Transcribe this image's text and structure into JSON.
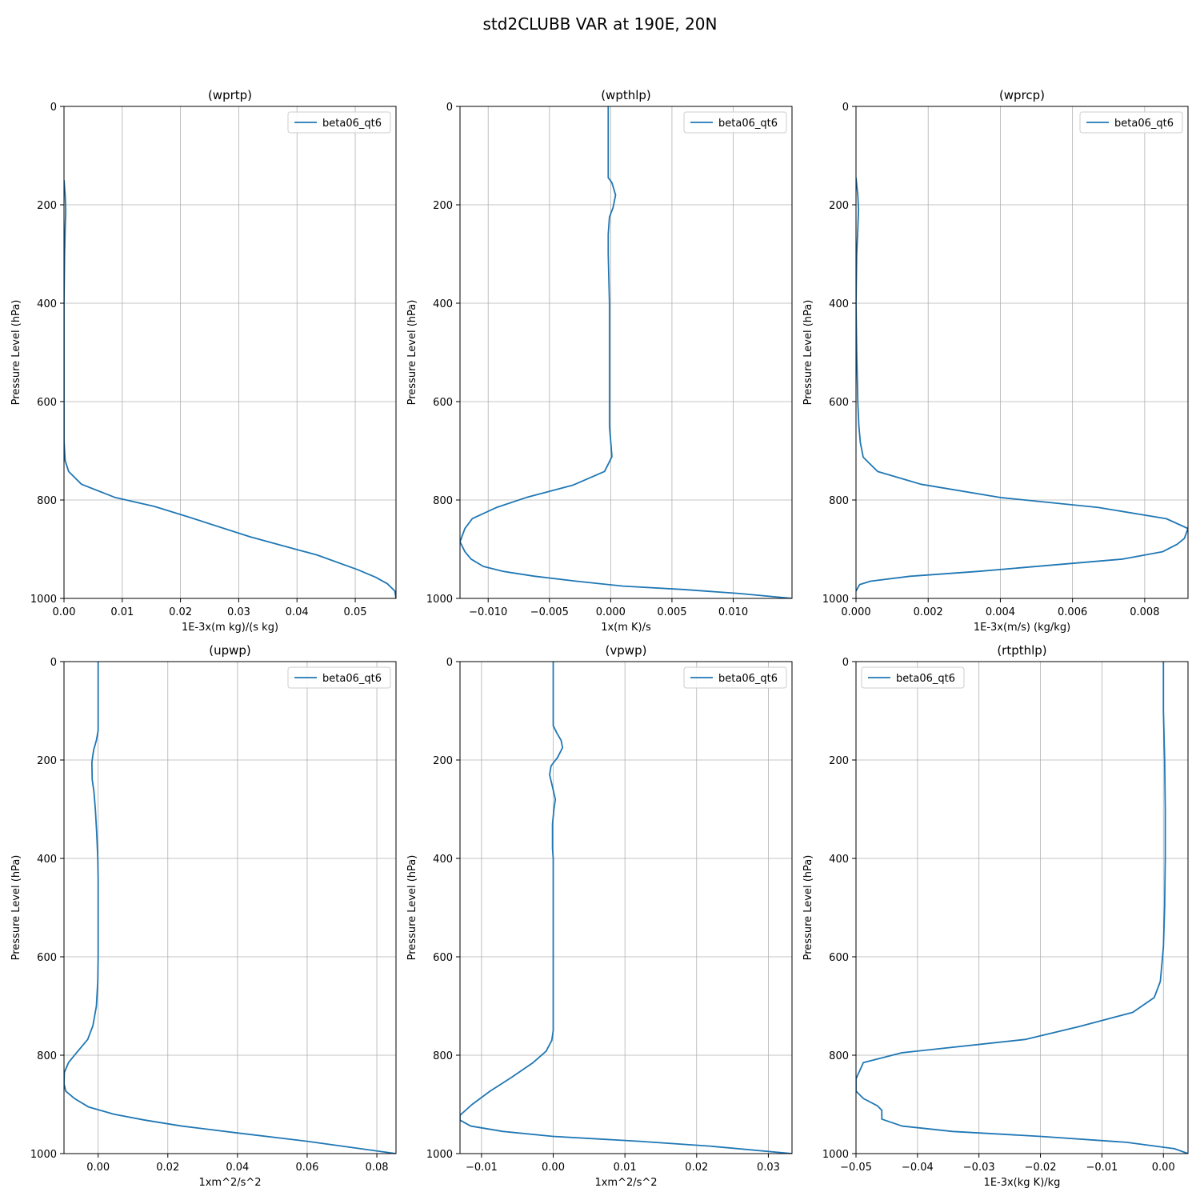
{
  "figure_title": "std2CLUBB VAR at 190E, 20N",
  "chart_data": [
    {
      "type": "line",
      "title": "(wprtp)",
      "xlabel": "1E-3x(m kg)/(s kg)",
      "ylabel": "Pressure Level (hPa)",
      "xlim": [
        0,
        0.057
      ],
      "ylim": [
        1000,
        0
      ],
      "y_inverted": true,
      "grid": true,
      "legend_position": "upper right",
      "xticks": [
        0.0,
        0.01,
        0.02,
        0.03,
        0.04,
        0.05
      ],
      "xtick_labels": [
        "0.00",
        "0.01",
        "0.02",
        "0.03",
        "0.04",
        "0.05"
      ],
      "yticks": [
        0,
        200,
        400,
        600,
        800,
        1000
      ],
      "series": [
        {
          "name": "beta06_qt6",
          "color": "#1f77b4",
          "points": [
            [
              0.0,
              150
            ],
            [
              0.0002,
              180
            ],
            [
              0.0003,
              210
            ],
            [
              0.0002,
              250
            ],
            [
              0.0001,
              300
            ],
            [
              0.0,
              400
            ],
            [
              0.0,
              500
            ],
            [
              0.0,
              600
            ],
            [
              0.0,
              680
            ],
            [
              0.0002,
              720
            ],
            [
              0.0008,
              742
            ],
            [
              0.003,
              768
            ],
            [
              0.0088,
              795
            ],
            [
              0.0155,
              813
            ],
            [
              0.0215,
              835
            ],
            [
              0.032,
              875
            ],
            [
              0.0435,
              912
            ],
            [
              0.0505,
              942
            ],
            [
              0.0535,
              957
            ],
            [
              0.0555,
              970
            ],
            [
              0.0568,
              985
            ],
            [
              0.057,
              1000
            ]
          ]
        }
      ]
    },
    {
      "type": "line",
      "title": "(wpthlp)",
      "xlabel": "1x(m K)/s",
      "ylabel": "Pressure Level (hPa)",
      "xlim": [
        -0.0123,
        0.0148
      ],
      "ylim": [
        1000,
        0
      ],
      "y_inverted": true,
      "grid": true,
      "legend_position": "upper right",
      "xticks": [
        -0.01,
        -0.005,
        0.0,
        0.005,
        0.01
      ],
      "xtick_labels": [
        "−0.010",
        "−0.005",
        "0.000",
        "0.005",
        "0.010"
      ],
      "yticks": [
        0,
        200,
        400,
        600,
        800,
        1000
      ],
      "series": [
        {
          "name": "beta06_qt6",
          "color": "#1f77b4",
          "points": [
            [
              -0.0002,
              0
            ],
            [
              -0.0002,
              50
            ],
            [
              -0.0002,
              100
            ],
            [
              -0.0002,
              145
            ],
            [
              0.0001,
              155
            ],
            [
              0.0004,
              180
            ],
            [
              0.0002,
              205
            ],
            [
              -0.0001,
              225
            ],
            [
              -0.0002,
              260
            ],
            [
              -0.0002,
              300
            ],
            [
              -0.0001,
              400
            ],
            [
              -0.0001,
              500
            ],
            [
              -0.0001,
              600
            ],
            [
              -0.0001,
              650
            ],
            [
              0.0,
              680
            ],
            [
              0.0001,
              712
            ],
            [
              -0.0005,
              742
            ],
            [
              -0.0031,
              770
            ],
            [
              -0.0069,
              795
            ],
            [
              -0.0093,
              815
            ],
            [
              -0.0113,
              838
            ],
            [
              -0.0119,
              858
            ],
            [
              -0.0123,
              885
            ],
            [
              -0.0119,
              905
            ],
            [
              -0.0114,
              920
            ],
            [
              -0.0104,
              935
            ],
            [
              -0.0088,
              945
            ],
            [
              -0.0062,
              955
            ],
            [
              -0.0028,
              965
            ],
            [
              0.001,
              975
            ],
            [
              0.006,
              982
            ],
            [
              0.0105,
              990
            ],
            [
              0.0148,
              1000
            ]
          ]
        }
      ]
    },
    {
      "type": "line",
      "title": "(wprcp)",
      "xlabel": "1E-3x(m/s) (kg/kg)",
      "ylabel": "Pressure Level (hPa)",
      "xlim": [
        0,
        0.0092
      ],
      "ylim": [
        1000,
        0
      ],
      "y_inverted": true,
      "grid": true,
      "legend_position": "upper right",
      "xticks": [
        0.0,
        0.002,
        0.004,
        0.006,
        0.008
      ],
      "xtick_labels": [
        "0.000",
        "0.002",
        "0.004",
        "0.006",
        "0.008"
      ],
      "yticks": [
        0,
        200,
        400,
        600,
        800,
        1000
      ],
      "series": [
        {
          "name": "beta06_qt6",
          "color": "#1f77b4",
          "points": [
            [
              0.0,
              145
            ],
            [
              5e-05,
              180
            ],
            [
              7e-05,
              210
            ],
            [
              5e-05,
              250
            ],
            [
              2e-05,
              300
            ],
            [
              0.0,
              400
            ],
            [
              2e-05,
              500
            ],
            [
              5e-05,
              600
            ],
            [
              8e-05,
              650
            ],
            [
              0.00012,
              683
            ],
            [
              0.0002,
              713
            ],
            [
              0.0006,
              742
            ],
            [
              0.0018,
              768
            ],
            [
              0.004,
              795
            ],
            [
              0.0067,
              815
            ],
            [
              0.0086,
              838
            ],
            [
              0.0092,
              858
            ],
            [
              0.0091,
              878
            ],
            [
              0.0089,
              890
            ],
            [
              0.0085,
              905
            ],
            [
              0.0074,
              920
            ],
            [
              0.0058,
              930
            ],
            [
              0.0034,
              945
            ],
            [
              0.0015,
              955
            ],
            [
              0.0004,
              965
            ],
            [
              0.0001,
              972
            ],
            [
              0.0,
              985
            ]
          ]
        }
      ]
    },
    {
      "type": "line",
      "title": "(upwp)",
      "xlabel": "1xm^2/s^2",
      "ylabel": "Pressure Level (hPa)",
      "xlim": [
        -0.0098,
        0.0855
      ],
      "ylim": [
        1000,
        0
      ],
      "y_inverted": true,
      "grid": true,
      "legend_position": "upper right",
      "xticks": [
        0.0,
        0.02,
        0.04,
        0.06,
        0.08
      ],
      "xtick_labels": [
        "0.00",
        "0.02",
        "0.04",
        "0.06",
        "0.08"
      ],
      "yticks": [
        0,
        200,
        400,
        600,
        800,
        1000
      ],
      "series": [
        {
          "name": "beta06_qt6",
          "color": "#1f77b4",
          "points": [
            [
              0.0,
              0
            ],
            [
              0.0,
              50
            ],
            [
              0.0,
              100
            ],
            [
              0.0,
              140
            ],
            [
              -0.0005,
              160
            ],
            [
              -0.0013,
              180
            ],
            [
              -0.0018,
              205
            ],
            [
              -0.0017,
              240
            ],
            [
              -0.0012,
              265
            ],
            [
              -0.0008,
              300
            ],
            [
              -0.0004,
              350
            ],
            [
              -0.0001,
              400
            ],
            [
              0.0,
              440
            ],
            [
              0.0,
              500
            ],
            [
              0.0,
              600
            ],
            [
              -0.0001,
              650
            ],
            [
              -0.0005,
              700
            ],
            [
              -0.0015,
              740
            ],
            [
              -0.003,
              768
            ],
            [
              -0.0062,
              795
            ],
            [
              -0.0085,
              815
            ],
            [
              -0.0097,
              835
            ],
            [
              -0.0098,
              858
            ],
            [
              -0.0093,
              873
            ],
            [
              -0.0068,
              888
            ],
            [
              -0.0028,
              905
            ],
            [
              0.0045,
              920
            ],
            [
              0.0135,
              932
            ],
            [
              0.024,
              944
            ],
            [
              0.04,
              958
            ],
            [
              0.06,
              975
            ],
            [
              0.0855,
              1000
            ]
          ]
        }
      ]
    },
    {
      "type": "line",
      "title": "(vpwp)",
      "xlabel": "1xm^2/s^2",
      "ylabel": "Pressure Level (hPa)",
      "xlim": [
        -0.013,
        0.0333
      ],
      "ylim": [
        1000,
        0
      ],
      "y_inverted": true,
      "grid": true,
      "legend_position": "upper right",
      "xticks": [
        -0.01,
        0.0,
        0.01,
        0.02,
        0.03
      ],
      "xtick_labels": [
        "−0.01",
        "0.00",
        "0.01",
        "0.02",
        "0.03"
      ],
      "yticks": [
        0,
        200,
        400,
        600,
        800,
        1000
      ],
      "series": [
        {
          "name": "beta06_qt6",
          "color": "#1f77b4",
          "points": [
            [
              0.0,
              0
            ],
            [
              0.0,
              50
            ],
            [
              0.0,
              100
            ],
            [
              0.0,
              130
            ],
            [
              0.0005,
              145
            ],
            [
              0.0011,
              160
            ],
            [
              0.0013,
              175
            ],
            [
              0.0006,
              195
            ],
            [
              -0.0003,
              212
            ],
            [
              -0.0005,
              230
            ],
            [
              -0.0001,
              255
            ],
            [
              0.0003,
              280
            ],
            [
              0.0001,
              300
            ],
            [
              -0.0001,
              330
            ],
            [
              -0.0001,
              380
            ],
            [
              0.0,
              400
            ],
            [
              0.0,
              450
            ],
            [
              0.0,
              500
            ],
            [
              0.0,
              600
            ],
            [
              0.0,
              700
            ],
            [
              0.0,
              750
            ],
            [
              -0.0002,
              770
            ],
            [
              -0.001,
              792
            ],
            [
              -0.0028,
              815
            ],
            [
              -0.0058,
              845
            ],
            [
              -0.0088,
              873
            ],
            [
              -0.0113,
              900
            ],
            [
              -0.013,
              922
            ],
            [
              -0.013,
              932
            ],
            [
              -0.0115,
              944
            ],
            [
              -0.007,
              955
            ],
            [
              0.0,
              965
            ],
            [
              0.012,
              975
            ],
            [
              0.022,
              985
            ],
            [
              0.0333,
              1000
            ]
          ]
        }
      ]
    },
    {
      "type": "line",
      "title": "(rtpthlp)",
      "xlabel": "1E-3x(kg K)/kg",
      "ylabel": "Pressure Level (hPa)",
      "xlim": [
        -0.05,
        0.004
      ],
      "ylim": [
        1000,
        0
      ],
      "y_inverted": true,
      "grid": true,
      "legend_position": "upper left",
      "xticks": [
        -0.05,
        -0.04,
        -0.03,
        -0.02,
        -0.01,
        0.0
      ],
      "xtick_labels": [
        "−0.05",
        "−0.04",
        "−0.03",
        "−0.02",
        "−0.01",
        "0.00"
      ],
      "yticks": [
        0,
        200,
        400,
        600,
        800,
        1000
      ],
      "series": [
        {
          "name": "beta06_qt6",
          "color": "#1f77b4",
          "points": [
            [
              0.0,
              0
            ],
            [
              0.0,
              100
            ],
            [
              0.0002,
              200
            ],
            [
              0.0003,
              300
            ],
            [
              0.0003,
              400
            ],
            [
              0.0002,
              500
            ],
            [
              0.0,
              580
            ],
            [
              -0.0005,
              650
            ],
            [
              -0.0015,
              683
            ],
            [
              -0.005,
              713
            ],
            [
              -0.0138,
              742
            ],
            [
              -0.0225,
              768
            ],
            [
              -0.0425,
              795
            ],
            [
              -0.0488,
              815
            ],
            [
              -0.05,
              848
            ],
            [
              -0.05,
              873
            ],
            [
              -0.0488,
              888
            ],
            [
              -0.0465,
              903
            ],
            [
              -0.0458,
              912
            ],
            [
              -0.0458,
              930
            ],
            [
              -0.0425,
              944
            ],
            [
              -0.0343,
              955
            ],
            [
              -0.02,
              965
            ],
            [
              -0.006,
              977
            ],
            [
              0.0018,
              990
            ],
            [
              0.004,
              1000
            ]
          ]
        }
      ]
    }
  ]
}
